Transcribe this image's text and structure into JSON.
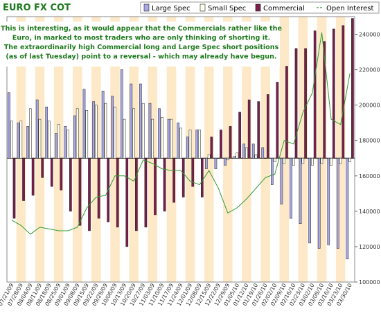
{
  "chart_data": {
    "type": "bar",
    "title": "EURO FX COT",
    "annotation_lines": [
      "This is interesting, as it would appear that the Commercials rather like the",
      "Euro, in marked to most traders who are only thinking of shorting it.",
      "The extraordinarily high Commercial long and Large Spec short positions",
      "(as of last Tuesday) point to a reversal - which may already have begun."
    ],
    "legend": [
      "Large Spec",
      "Small Spec",
      "Commercial",
      "Open Interest"
    ],
    "legend_position": "top-right",
    "colors": {
      "large_spec": "#a8a8e8",
      "small_spec": "#fffff0",
      "commercial": "#7a1e4a",
      "open_interest": "#2f9a2f",
      "band": "#fde9c8",
      "title": "#1e7a1e"
    },
    "categories": [
      "07/21/09",
      "07/28/09",
      "08/04/09",
      "08/11/09",
      "08/18/09",
      "08/25/09",
      "09/01/09",
      "09/08/09",
      "09/15/09",
      "09/22/09",
      "09/29/09",
      "10/06/09",
      "10/13/09",
      "10/20/09",
      "10/27/09",
      "11/03/09",
      "11/10/09",
      "11/17/09",
      "11/24/09",
      "12/01/09",
      "12/08/09",
      "12/15/09",
      "12/22/09",
      "12/29/09",
      "01/05/10",
      "01/12/10",
      "01/19/10",
      "01/26/10",
      "02/02/10",
      "02/09/10",
      "02/16/10",
      "02/23/10",
      "03/02/10",
      "03/09/10",
      "03/16/10",
      "03/23/10",
      "03/30/10"
    ],
    "x_tick_labels": [
      "07/21/09",
      "07/28/09",
      "08/04/09",
      "08/11/09",
      "08/18/09",
      "08/25/09",
      "09/01/09",
      "09/08/09",
      "09/15/09",
      "09/22/09",
      "09/29/09",
      "10/06/09",
      "10/13/09",
      "10/20/09",
      "10/27/09",
      "11/03/09",
      "11/10/09",
      "11/17/09",
      "11/24/09",
      "12/01/09",
      "12/08/09",
      "12/15/09",
      "12/22/09",
      "12/29/09",
      "01/05/10",
      "01/12/10",
      "01/19/10",
      "01/26/10",
      "02/02/10",
      "02/09/10",
      "02/16/10",
      "02/23/10",
      "03/02/10",
      "03/09/10",
      "03/16/10",
      "03/23/10",
      "03/30/10"
    ],
    "y_tick_labels": [
      "100000",
      "120000",
      "140000",
      "160000",
      "180000",
      "200000",
      "220000",
      "240000"
    ],
    "ylim": [
      100000,
      250000
    ],
    "baseline": 170000,
    "series": [
      {
        "name": "Large Spec",
        "type": "bar",
        "values": [
          207000,
          190000,
          188000,
          203000,
          199000,
          184000,
          188000,
          194000,
          209000,
          202000,
          208000,
          205000,
          220000,
          212000,
          212000,
          201000,
          198000,
          192000,
          190000,
          182000,
          186000,
          164000,
          164000,
          166000,
          171000,
          178000,
          178000,
          176000,
          155000,
          144000,
          136000,
          133000,
          122000,
          119000,
          121000,
          119000,
          113000
        ]
      },
      {
        "name": "Small Spec",
        "type": "bar",
        "values": [
          191000,
          191000,
          198000,
          192000,
          191000,
          189000,
          186000,
          198000,
          197000,
          200000,
          201000,
          199000,
          192000,
          198000,
          201000,
          192000,
          193000,
          192000,
          187000,
          186000,
          186000,
          172000,
          170000,
          169000,
          173000,
          176000,
          172000,
          170000,
          168000,
          167000,
          166000,
          167000,
          166000,
          167000,
          166000,
          167000,
          168000
        ]
      },
      {
        "name": "Commercial",
        "type": "bar",
        "values": [
          136000,
          146000,
          149000,
          159000,
          154000,
          152000,
          140000,
          132000,
          129000,
          136000,
          134000,
          131000,
          120000,
          129000,
          131000,
          138000,
          140000,
          145000,
          148000,
          154000,
          148000,
          182000,
          186000,
          188000,
          196000,
          203000,
          202000,
          206000,
          213000,
          222000,
          232000,
          232000,
          242000,
          236000,
          243000,
          245000,
          249000
        ]
      },
      {
        "name": "Open Interest",
        "type": "line",
        "values": [
          135000,
          132000,
          127000,
          131000,
          130000,
          129000,
          129000,
          131000,
          142000,
          148000,
          149000,
          160000,
          160000,
          157000,
          169000,
          167000,
          164000,
          163000,
          163000,
          157000,
          155000,
          163000,
          153000,
          139000,
          142000,
          147000,
          153000,
          159000,
          161000,
          180000,
          178000,
          196000,
          207000,
          241000,
          192000,
          189000,
          218000
        ]
      }
    ]
  }
}
